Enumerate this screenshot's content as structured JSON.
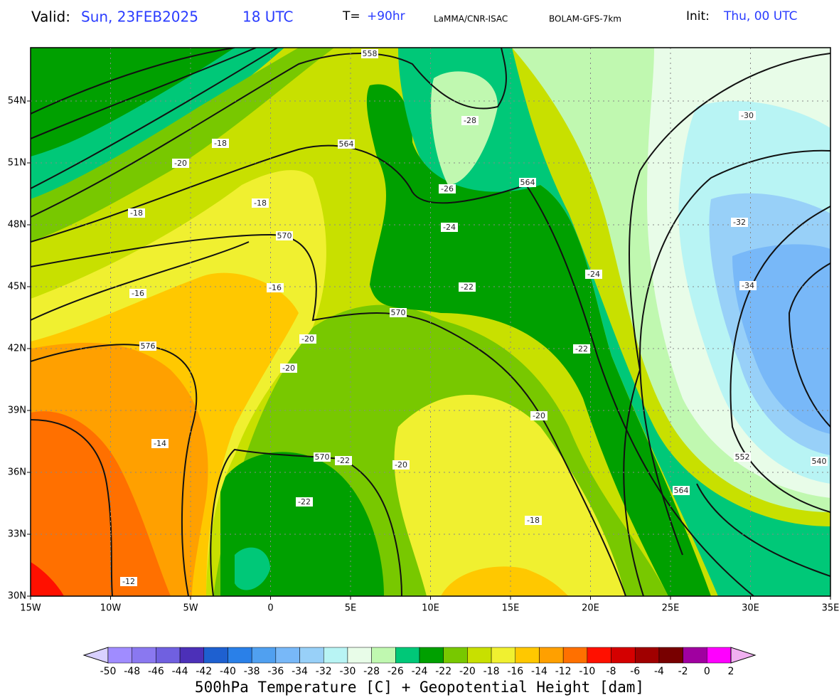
{
  "header": {
    "valid_label": "Valid:",
    "valid_date": "Sun, 23FEB2025",
    "valid_time": "18 UTC",
    "step_label": "T=",
    "step_value": "+90hr",
    "source": "LaMMA/CNR-ISAC",
    "model": "BOLAM-GFS-7km",
    "init_label": "Init:",
    "init_value": "Thu, 00 UTC"
  },
  "map": {
    "lat_labels": [
      "54N",
      "51N",
      "48N",
      "45N",
      "42N",
      "39N",
      "36N",
      "33N",
      "30N"
    ],
    "lon_labels": [
      "15W",
      "10W",
      "5W",
      "0",
      "5E",
      "10E",
      "15E",
      "20E",
      "25E",
      "30E",
      "35E"
    ],
    "contour_labels": [
      "558",
      "-28",
      "-18",
      "-20",
      "564",
      "-26",
      "564",
      "-18",
      "-18",
      "-30",
      "-32",
      "-24",
      "570",
      "-16",
      "-16",
      "-22",
      "-24",
      "-34",
      "570",
      "-20",
      "-22",
      "576",
      "-20",
      "-20",
      "-14",
      "570",
      "-22",
      "-20",
      "552",
      "540",
      "564",
      "-22",
      "-18",
      "-12"
    ]
  },
  "colorbar": {
    "labels": [
      -50,
      -48,
      -46,
      -44,
      -42,
      -40,
      -38,
      -36,
      -34,
      -32,
      -30,
      -28,
      -26,
      -24,
      -22,
      -20,
      -18,
      -16,
      -14,
      -12,
      -10,
      -8,
      -6,
      -4,
      -2,
      0,
      2
    ],
    "colors": [
      "#d8d0ff",
      "#a08cff",
      "#8a78f0",
      "#7060e0",
      "#4c30b8",
      "#1e60d0",
      "#2a80e8",
      "#50a0f0",
      "#78b8f8",
      "#98d0f8",
      "#b8f4f4",
      "#e8fce8",
      "#c0f8b0",
      "#00c878",
      "#00a000",
      "#78c800",
      "#c8e000",
      "#f0f030",
      "#ffc800",
      "#ffa000",
      "#ff7000",
      "#ff1000",
      "#d40000",
      "#a00000",
      "#780000",
      "#a000a0",
      "#ff00ff",
      "#f0b0f0"
    ],
    "caption": "500hPa Temperature [C] + Geopotential Height [dam]"
  }
}
